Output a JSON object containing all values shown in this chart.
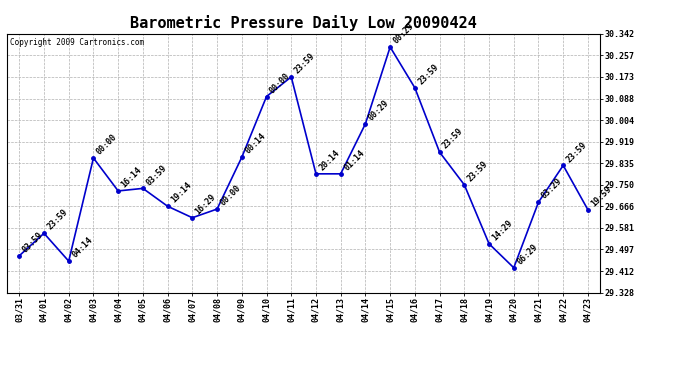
{
  "title": "Barometric Pressure Daily Low 20090424",
  "copyright": "Copyright 2009 Cartronics.com",
  "x_labels": [
    "03/31",
    "04/01",
    "04/02",
    "04/03",
    "04/04",
    "04/05",
    "04/06",
    "04/07",
    "04/08",
    "04/09",
    "04/10",
    "04/11",
    "04/12",
    "04/13",
    "04/14",
    "04/15",
    "04/16",
    "04/17",
    "04/18",
    "04/19",
    "04/20",
    "04/21",
    "04/22",
    "04/23"
  ],
  "y_values": [
    29.472,
    29.56,
    29.451,
    29.855,
    29.726,
    29.736,
    29.666,
    29.621,
    29.655,
    29.858,
    30.096,
    30.173,
    29.793,
    29.793,
    29.989,
    30.29,
    30.13,
    29.878,
    29.75,
    29.519,
    29.425,
    29.682,
    29.826,
    29.652
  ],
  "point_labels": [
    "03:59",
    "23:59",
    "04:14",
    "00:00",
    "16:14",
    "03:59",
    "19:14",
    "16:29",
    "00:00",
    "00:14",
    "00:00",
    "23:59",
    "20:14",
    "01:14",
    "00:29",
    "00:29",
    "23:59",
    "23:59",
    "23:59",
    "14:29",
    "06:29",
    "03:29",
    "23:59",
    "19:59"
  ],
  "ylim_min": 29.328,
  "ylim_max": 30.342,
  "yticks": [
    29.328,
    29.412,
    29.497,
    29.581,
    29.666,
    29.75,
    29.835,
    29.919,
    30.004,
    30.088,
    30.173,
    30.257,
    30.342
  ],
  "line_color": "#0000cc",
  "marker_color": "#0000cc",
  "bg_color": "#ffffff",
  "grid_color": "#b0b0b0",
  "title_fontsize": 11,
  "label_fontsize": 6,
  "annotation_fontsize": 6
}
